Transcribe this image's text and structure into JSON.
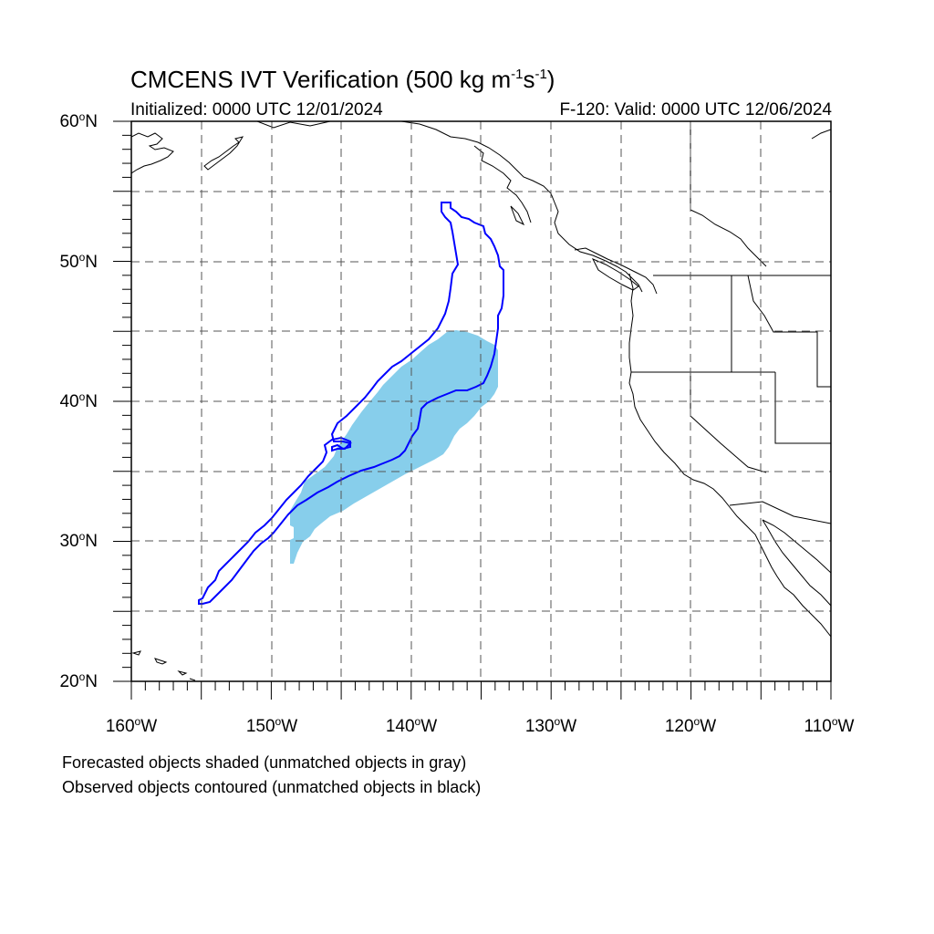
{
  "header": {
    "title_main": "CMCENS IVT Verification (500 kg m",
    "title_exp1": "-1",
    "title_mid": "s",
    "title_exp2": "-1",
    "title_end": ")",
    "initialized": "Initialized: 0000 UTC 12/01/2024",
    "valid": "F-120: Valid: 0000 UTC 12/06/2024"
  },
  "axes": {
    "lat_labels": [
      {
        "value": 60,
        "num": "60",
        "deg": "o",
        "hemi": "N"
      },
      {
        "value": 50,
        "num": "50",
        "deg": "o",
        "hemi": "N"
      },
      {
        "value": 40,
        "num": "40",
        "deg": "o",
        "hemi": "N"
      },
      {
        "value": 30,
        "num": "30",
        "deg": "o",
        "hemi": "N"
      },
      {
        "value": 20,
        "num": "20",
        "deg": "o",
        "hemi": "N"
      }
    ],
    "lon_labels": [
      {
        "value": -160,
        "num": "160",
        "deg": "o",
        "hemi": "W"
      },
      {
        "value": -150,
        "num": "150",
        "deg": "o",
        "hemi": "W"
      },
      {
        "value": -140,
        "num": "140",
        "deg": "o",
        "hemi": "W"
      },
      {
        "value": -130,
        "num": "130",
        "deg": "o",
        "hemi": "W"
      },
      {
        "value": -120,
        "num": "120",
        "deg": "o",
        "hemi": "W"
      },
      {
        "value": -110,
        "num": "110",
        "deg": "o",
        "hemi": "W"
      }
    ],
    "lat_range": [
      20,
      60
    ],
    "lon_range": [
      -160,
      -110
    ],
    "grid": "dashed, every 5 degrees"
  },
  "legend": {
    "line1": "Forecasted objects shaded (unmatched objects in gray)",
    "line2": "Observed objects contoured (unmatched objects in black)"
  },
  "colors": {
    "forecast_fill": "#87ceeb",
    "observed_contour": "#0000ff",
    "coastline": "#000000",
    "grid": "#555555"
  }
}
